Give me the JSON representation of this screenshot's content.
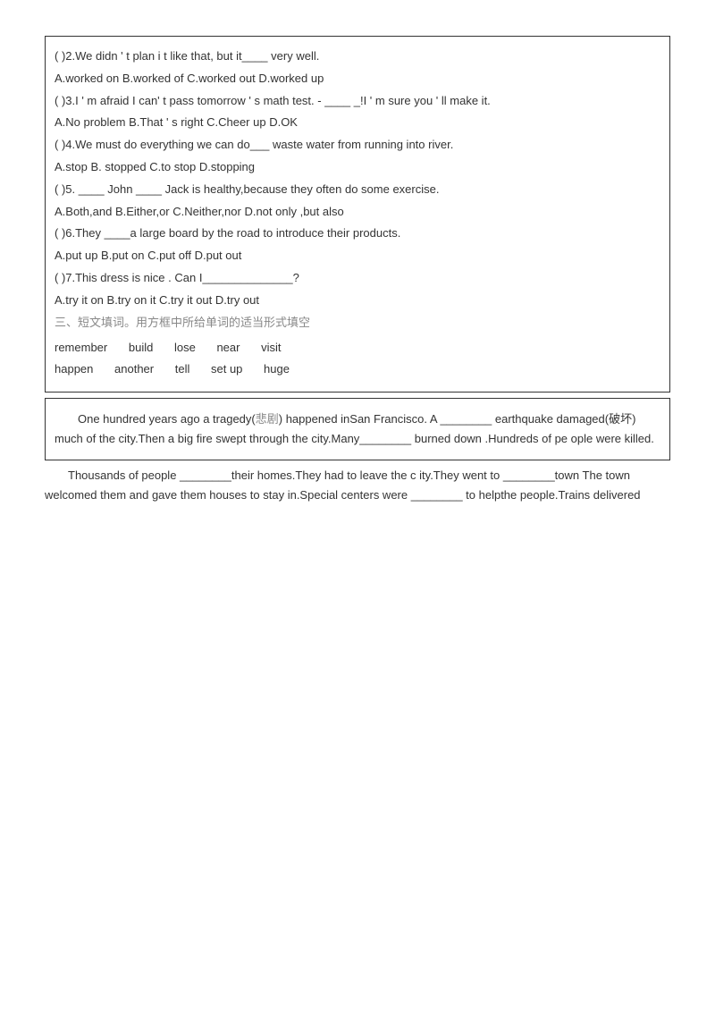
{
  "q2": {
    "stem": "(  )2.We didn ' t plan i t like that, but it____ very well.",
    "opts": "A.worked on B.worked of C.worked out D.worked up"
  },
  "q3": {
    "stem": "(  )3.I ' m afraid I can' t pass tomorrow ' s math test. - ____ _!I ' m sure you ' ll make it.",
    "opts": "A.No problem B.That ' s right C.Cheer up D.OK"
  },
  "q4": {
    "stem": "(  )4.We must do everything we can do___ waste water from running into river.",
    "opts": "A.stop  B. stopped C.to stop  D.stopping"
  },
  "q5": {
    "stem": "(  )5. ____ John ____ Jack is healthy,because they often do some exercise.",
    "opts": "A.Both,and  B.Either,or  C.Neither,nor  D.not only ,but also"
  },
  "q6": {
    "stem": "(  )6.They ____a large board by the road to introduce their products.",
    "opts": "A.put up  B.put on  C.put off  D.put out"
  },
  "q7": {
    "stem": "(  )7.This dress is nice . Can I______________?",
    "opts": "A.try it on B.try on it C.try it out D.try out"
  },
  "section3": "三、短文填词。用方框中所给单词的适当形式填空",
  "words": [
    "remember",
    "build",
    "lose",
    "near",
    "visit",
    "happen",
    "another",
    "tell",
    "set up",
    "huge"
  ],
  "passage": {
    "p1a": "One hundred years ago a tragedy(",
    "p1ch": "悲剧",
    "p1b": ") happened inSan Francisco. A ________ earthquake damaged(破坏) much of the city.Then a big fire swept through the city.Many________ burned down .Hundreds of pe ople were killed.",
    "p2": "Thousands of people ________their homes.They had to leave the c ity.They went to ________town The town welcomed them and gave them houses to stay in.Special centers were ________ to helpthe people.Trains delivered"
  }
}
